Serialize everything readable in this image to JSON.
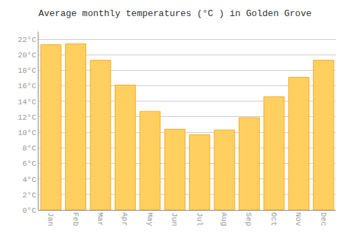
{
  "chart_data": {
    "type": "bar",
    "title": "Average monthly temperatures (°C ) in Golden Grove",
    "categories": [
      "Jan",
      "Feb",
      "Mar",
      "Apr",
      "May",
      "Jun",
      "Jul",
      "Aug",
      "Sep",
      "Oct",
      "Nov",
      "Dec"
    ],
    "values": [
      21.3,
      21.4,
      19.3,
      16.1,
      12.7,
      10.4,
      9.7,
      10.3,
      11.9,
      14.6,
      17.1,
      19.3
    ],
    "color": "#FFD060",
    "ylim": [
      0,
      23
    ],
    "yticks": [
      {
        "value": 0,
        "label": "0°C"
      },
      {
        "value": 2,
        "label": "2°C"
      },
      {
        "value": 4,
        "label": "4°C"
      },
      {
        "value": 6,
        "label": "6°C"
      },
      {
        "value": 8,
        "label": "8°C"
      },
      {
        "value": 10,
        "label": "10°C"
      },
      {
        "value": 12,
        "label": "12°C"
      },
      {
        "value": 14,
        "label": "14°C"
      },
      {
        "value": 16,
        "label": "16°C"
      },
      {
        "value": 18,
        "label": "18°C"
      },
      {
        "value": 20,
        "label": "20°C"
      },
      {
        "value": 22,
        "label": "22°C"
      }
    ],
    "grid": true
  }
}
